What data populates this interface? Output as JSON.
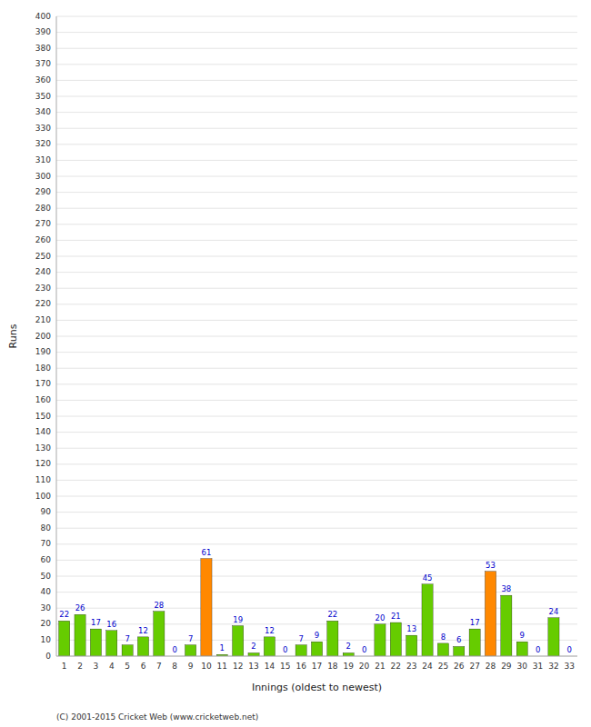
{
  "chart_data": {
    "type": "bar",
    "categories": [
      "1",
      "2",
      "3",
      "4",
      "5",
      "6",
      "7",
      "8",
      "9",
      "10",
      "11",
      "12",
      "13",
      "14",
      "15",
      "16",
      "17",
      "18",
      "19",
      "20",
      "21",
      "22",
      "23",
      "24",
      "25",
      "26",
      "27",
      "28",
      "29",
      "30",
      "31",
      "32",
      "33"
    ],
    "values": [
      22,
      26,
      17,
      16,
      7,
      12,
      28,
      0,
      7,
      61,
      1,
      19,
      2,
      12,
      0,
      7,
      9,
      22,
      2,
      0,
      20,
      21,
      13,
      45,
      8,
      6,
      17,
      53,
      38,
      9,
      0,
      24,
      0
    ],
    "colors": [
      "#66cc00",
      "#66cc00",
      "#66cc00",
      "#66cc00",
      "#66cc00",
      "#66cc00",
      "#66cc00",
      "#66cc00",
      "#66cc00",
      "#ff8800",
      "#66cc00",
      "#66cc00",
      "#66cc00",
      "#66cc00",
      "#66cc00",
      "#66cc00",
      "#66cc00",
      "#66cc00",
      "#66cc00",
      "#66cc00",
      "#66cc00",
      "#66cc00",
      "#66cc00",
      "#66cc00",
      "#66cc00",
      "#66cc00",
      "#66cc00",
      "#ff8800",
      "#66cc00",
      "#66cc00",
      "#66cc00",
      "#66cc00",
      "#66cc00"
    ],
    "x_label": "Innings (oldest to newest)",
    "y_label": "Runs",
    "ylim": [
      0,
      400
    ],
    "yticks": [
      0,
      10,
      20,
      30,
      40,
      50,
      60,
      70,
      80,
      90,
      100,
      110,
      120,
      130,
      140,
      150,
      160,
      170,
      180,
      190,
      200,
      210,
      220,
      230,
      240,
      250,
      260,
      270,
      280,
      290,
      300,
      310,
      320,
      330,
      340,
      350,
      360,
      370,
      380,
      390,
      400
    ],
    "grid": true,
    "data_labels": true,
    "annotations": [
      "(C) 2001-2015 Cricket Web (www.cricketweb.net)"
    ]
  }
}
